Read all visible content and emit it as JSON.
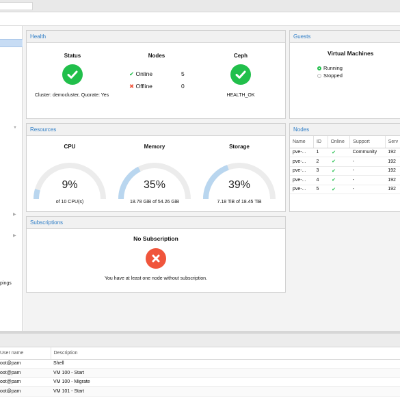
{
  "topbar": {
    "search_text": ""
  },
  "sidebar": {
    "partial_text": "pings"
  },
  "health": {
    "title": "Health",
    "status": {
      "label": "Status",
      "caption": "Cluster: democluster, Quorate: Yes"
    },
    "nodes": {
      "label": "Nodes",
      "online_label": "Online",
      "online_count": "5",
      "offline_label": "Offline",
      "offline_count": "0"
    },
    "ceph": {
      "label": "Ceph",
      "caption": "HEALTH_OK"
    }
  },
  "guests": {
    "title": "Guests",
    "heading": "Virtual Machines",
    "legend": [
      {
        "label": "Running",
        "color": "#21bf4b"
      },
      {
        "label": "Stopped",
        "color": "#cccccc"
      }
    ]
  },
  "resources": {
    "title": "Resources",
    "gauges": [
      {
        "label": "CPU",
        "value": "9%",
        "fraction": 0.09,
        "caption": "of 10 CPU(s)"
      },
      {
        "label": "Memory",
        "value": "35%",
        "fraction": 0.35,
        "caption": "18.78 GiB of 54.26 GiB"
      },
      {
        "label": "Storage",
        "value": "39%",
        "fraction": 0.39,
        "caption": "7.18 TiB of 18.45 TiB"
      }
    ],
    "gauge_color": "#b9d6ef",
    "gauge_track": "#ececec"
  },
  "nodes_panel": {
    "title": "Nodes",
    "columns": [
      "Name",
      "ID",
      "Online",
      "Support",
      "Serv"
    ],
    "rows": [
      {
        "name": "pve-...",
        "id": "1",
        "support": "Community",
        "server": "192"
      },
      {
        "name": "pve-...",
        "id": "2",
        "support": "-",
        "server": "192"
      },
      {
        "name": "pve-...",
        "id": "3",
        "support": "-",
        "server": "192"
      },
      {
        "name": "pve-...",
        "id": "4",
        "support": "-",
        "server": "192"
      },
      {
        "name": "pve-...",
        "id": "5",
        "support": "-",
        "server": "192"
      }
    ]
  },
  "subscriptions": {
    "title": "Subscriptions",
    "heading": "No Subscription",
    "message": "You have at least one node without subscription."
  },
  "tasks": {
    "columns": [
      "User name",
      "Description"
    ],
    "rows": [
      {
        "user": "oot@pam",
        "desc": "Shell"
      },
      {
        "user": "oot@pam",
        "desc": "VM 100 - Start"
      },
      {
        "user": "oot@pam",
        "desc": "VM 100 - Migrate"
      },
      {
        "user": "oot@pam",
        "desc": "VM 101 - Start"
      }
    ]
  }
}
